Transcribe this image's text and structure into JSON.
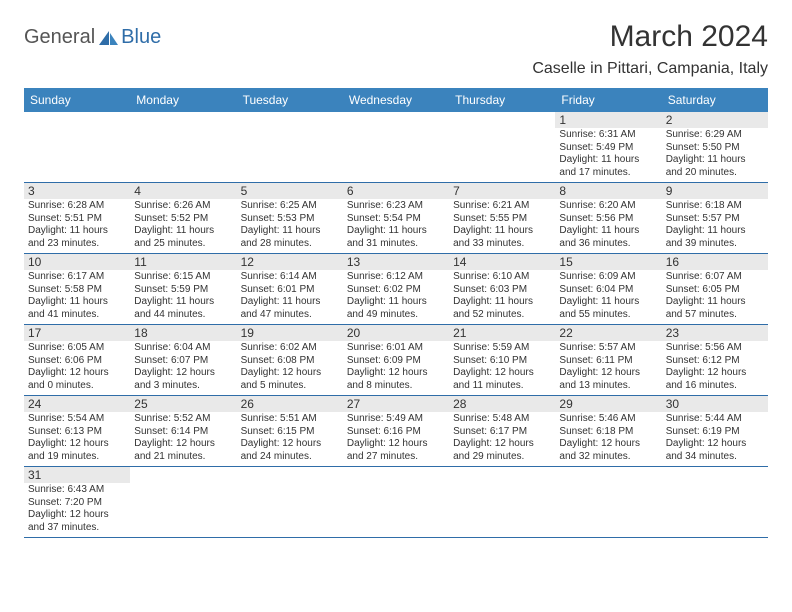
{
  "header": {
    "logo_part1": "General",
    "logo_part2": "Blue",
    "month_title": "March 2024",
    "location": "Caselle in Pittari, Campania, Italy"
  },
  "colors": {
    "header_bg": "#3b83bd",
    "header_text": "#ffffff",
    "daynum_bg": "#e9e9e9",
    "border": "#2f6da8",
    "logo_general": "#555555",
    "logo_blue": "#2f6da8",
    "text": "#333333"
  },
  "dayheads": [
    "Sunday",
    "Monday",
    "Tuesday",
    "Wednesday",
    "Thursday",
    "Friday",
    "Saturday"
  ],
  "weeks": [
    [
      {
        "n": "",
        "lines": []
      },
      {
        "n": "",
        "lines": []
      },
      {
        "n": "",
        "lines": []
      },
      {
        "n": "",
        "lines": []
      },
      {
        "n": "",
        "lines": []
      },
      {
        "n": "1",
        "lines": [
          "Sunrise: 6:31 AM",
          "Sunset: 5:49 PM",
          "Daylight: 11 hours",
          "and 17 minutes."
        ]
      },
      {
        "n": "2",
        "lines": [
          "Sunrise: 6:29 AM",
          "Sunset: 5:50 PM",
          "Daylight: 11 hours",
          "and 20 minutes."
        ]
      }
    ],
    [
      {
        "n": "3",
        "lines": [
          "Sunrise: 6:28 AM",
          "Sunset: 5:51 PM",
          "Daylight: 11 hours",
          "and 23 minutes."
        ]
      },
      {
        "n": "4",
        "lines": [
          "Sunrise: 6:26 AM",
          "Sunset: 5:52 PM",
          "Daylight: 11 hours",
          "and 25 minutes."
        ]
      },
      {
        "n": "5",
        "lines": [
          "Sunrise: 6:25 AM",
          "Sunset: 5:53 PM",
          "Daylight: 11 hours",
          "and 28 minutes."
        ]
      },
      {
        "n": "6",
        "lines": [
          "Sunrise: 6:23 AM",
          "Sunset: 5:54 PM",
          "Daylight: 11 hours",
          "and 31 minutes."
        ]
      },
      {
        "n": "7",
        "lines": [
          "Sunrise: 6:21 AM",
          "Sunset: 5:55 PM",
          "Daylight: 11 hours",
          "and 33 minutes."
        ]
      },
      {
        "n": "8",
        "lines": [
          "Sunrise: 6:20 AM",
          "Sunset: 5:56 PM",
          "Daylight: 11 hours",
          "and 36 minutes."
        ]
      },
      {
        "n": "9",
        "lines": [
          "Sunrise: 6:18 AM",
          "Sunset: 5:57 PM",
          "Daylight: 11 hours",
          "and 39 minutes."
        ]
      }
    ],
    [
      {
        "n": "10",
        "lines": [
          "Sunrise: 6:17 AM",
          "Sunset: 5:58 PM",
          "Daylight: 11 hours",
          "and 41 minutes."
        ]
      },
      {
        "n": "11",
        "lines": [
          "Sunrise: 6:15 AM",
          "Sunset: 5:59 PM",
          "Daylight: 11 hours",
          "and 44 minutes."
        ]
      },
      {
        "n": "12",
        "lines": [
          "Sunrise: 6:14 AM",
          "Sunset: 6:01 PM",
          "Daylight: 11 hours",
          "and 47 minutes."
        ]
      },
      {
        "n": "13",
        "lines": [
          "Sunrise: 6:12 AM",
          "Sunset: 6:02 PM",
          "Daylight: 11 hours",
          "and 49 minutes."
        ]
      },
      {
        "n": "14",
        "lines": [
          "Sunrise: 6:10 AM",
          "Sunset: 6:03 PM",
          "Daylight: 11 hours",
          "and 52 minutes."
        ]
      },
      {
        "n": "15",
        "lines": [
          "Sunrise: 6:09 AM",
          "Sunset: 6:04 PM",
          "Daylight: 11 hours",
          "and 55 minutes."
        ]
      },
      {
        "n": "16",
        "lines": [
          "Sunrise: 6:07 AM",
          "Sunset: 6:05 PM",
          "Daylight: 11 hours",
          "and 57 minutes."
        ]
      }
    ],
    [
      {
        "n": "17",
        "lines": [
          "Sunrise: 6:05 AM",
          "Sunset: 6:06 PM",
          "Daylight: 12 hours",
          "and 0 minutes."
        ]
      },
      {
        "n": "18",
        "lines": [
          "Sunrise: 6:04 AM",
          "Sunset: 6:07 PM",
          "Daylight: 12 hours",
          "and 3 minutes."
        ]
      },
      {
        "n": "19",
        "lines": [
          "Sunrise: 6:02 AM",
          "Sunset: 6:08 PM",
          "Daylight: 12 hours",
          "and 5 minutes."
        ]
      },
      {
        "n": "20",
        "lines": [
          "Sunrise: 6:01 AM",
          "Sunset: 6:09 PM",
          "Daylight: 12 hours",
          "and 8 minutes."
        ]
      },
      {
        "n": "21",
        "lines": [
          "Sunrise: 5:59 AM",
          "Sunset: 6:10 PM",
          "Daylight: 12 hours",
          "and 11 minutes."
        ]
      },
      {
        "n": "22",
        "lines": [
          "Sunrise: 5:57 AM",
          "Sunset: 6:11 PM",
          "Daylight: 12 hours",
          "and 13 minutes."
        ]
      },
      {
        "n": "23",
        "lines": [
          "Sunrise: 5:56 AM",
          "Sunset: 6:12 PM",
          "Daylight: 12 hours",
          "and 16 minutes."
        ]
      }
    ],
    [
      {
        "n": "24",
        "lines": [
          "Sunrise: 5:54 AM",
          "Sunset: 6:13 PM",
          "Daylight: 12 hours",
          "and 19 minutes."
        ]
      },
      {
        "n": "25",
        "lines": [
          "Sunrise: 5:52 AM",
          "Sunset: 6:14 PM",
          "Daylight: 12 hours",
          "and 21 minutes."
        ]
      },
      {
        "n": "26",
        "lines": [
          "Sunrise: 5:51 AM",
          "Sunset: 6:15 PM",
          "Daylight: 12 hours",
          "and 24 minutes."
        ]
      },
      {
        "n": "27",
        "lines": [
          "Sunrise: 5:49 AM",
          "Sunset: 6:16 PM",
          "Daylight: 12 hours",
          "and 27 minutes."
        ]
      },
      {
        "n": "28",
        "lines": [
          "Sunrise: 5:48 AM",
          "Sunset: 6:17 PM",
          "Daylight: 12 hours",
          "and 29 minutes."
        ]
      },
      {
        "n": "29",
        "lines": [
          "Sunrise: 5:46 AM",
          "Sunset: 6:18 PM",
          "Daylight: 12 hours",
          "and 32 minutes."
        ]
      },
      {
        "n": "30",
        "lines": [
          "Sunrise: 5:44 AM",
          "Sunset: 6:19 PM",
          "Daylight: 12 hours",
          "and 34 minutes."
        ]
      }
    ],
    [
      {
        "n": "31",
        "lines": [
          "Sunrise: 6:43 AM",
          "Sunset: 7:20 PM",
          "Daylight: 12 hours",
          "and 37 minutes."
        ]
      },
      {
        "n": "",
        "lines": []
      },
      {
        "n": "",
        "lines": []
      },
      {
        "n": "",
        "lines": []
      },
      {
        "n": "",
        "lines": []
      },
      {
        "n": "",
        "lines": []
      },
      {
        "n": "",
        "lines": []
      }
    ]
  ]
}
